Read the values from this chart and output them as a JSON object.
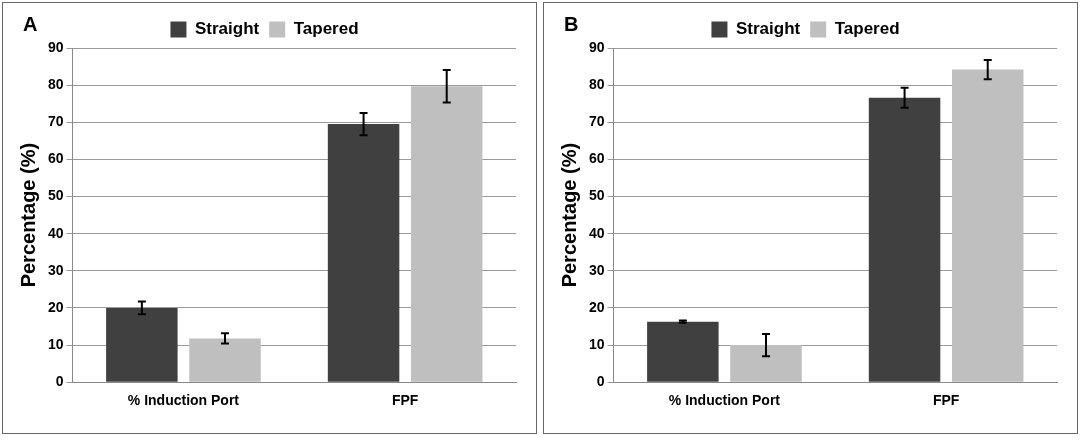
{
  "chart_data": [
    {
      "type": "bar",
      "annotations": [
        "A"
      ],
      "ylabel": "Percentage (%)",
      "categories": [
        "% Induction Port",
        "FPF"
      ],
      "series": [
        {
          "name": "Straight",
          "color": "#404040",
          "values": [
            20,
            69.5
          ],
          "errors": [
            1.7,
            3
          ]
        },
        {
          "name": "Tapered",
          "color": "#bfbfbf",
          "values": [
            11.8,
            79.7
          ],
          "errors": [
            1.4,
            4.4
          ]
        }
      ],
      "ylim": [
        0,
        90
      ],
      "yticks": [
        0,
        10,
        20,
        30,
        40,
        50,
        60,
        70,
        80,
        90
      ],
      "grid": "y",
      "legend": "top"
    },
    {
      "type": "bar",
      "annotations": [
        "B"
      ],
      "ylabel": "Percentage (%)",
      "categories": [
        "% Induction Port",
        "FPF"
      ],
      "series": [
        {
          "name": "Straight",
          "color": "#404040",
          "values": [
            16.3,
            76.6
          ],
          "errors": [
            0.3,
            2.7
          ]
        },
        {
          "name": "Tapered",
          "color": "#bfbfbf",
          "values": [
            10,
            84.2
          ],
          "errors": [
            3,
            2.6
          ]
        }
      ],
      "ylim": [
        0,
        90
      ],
      "yticks": [
        0,
        10,
        20,
        30,
        40,
        50,
        60,
        70,
        80,
        90
      ],
      "grid": "y",
      "legend": "top"
    }
  ]
}
